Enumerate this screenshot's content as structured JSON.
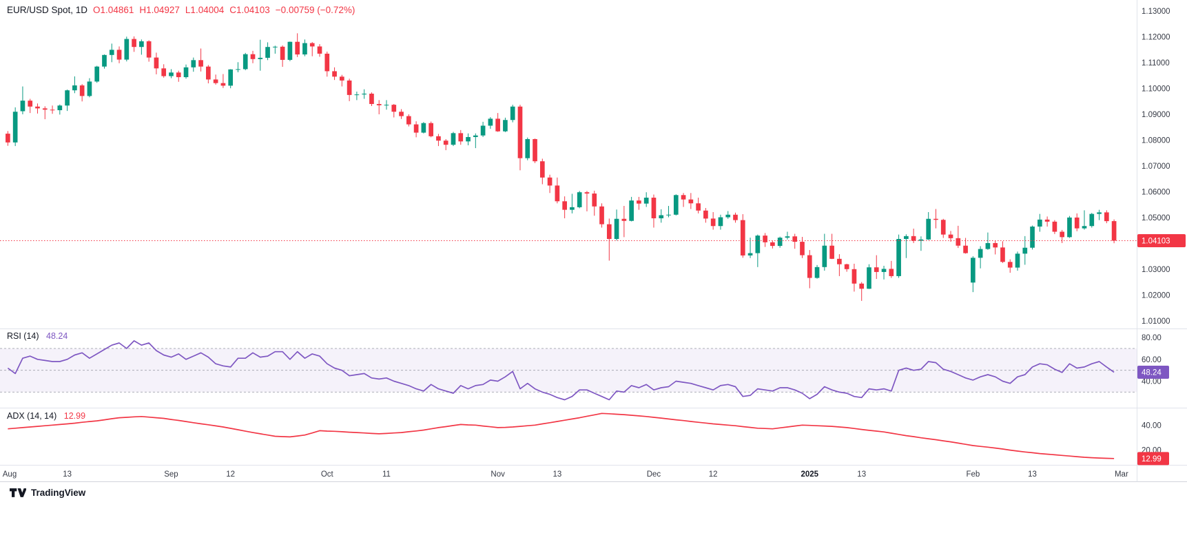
{
  "header": {
    "title": "EUR/USD Spot, 1D",
    "open": "O1.04861",
    "high": "H1.04927",
    "low": "L1.04004",
    "close": "C1.04103",
    "change": "−0.00759 (−0.72%)"
  },
  "legends": {
    "rsi": {
      "title": "RSI (14)",
      "value": "48.24"
    },
    "adx": {
      "title": "ADX (14, 14)",
      "value": "12.99"
    }
  },
  "footer": {
    "brand": "TradingView"
  },
  "colors": {
    "up": "#089981",
    "down": "#f23645",
    "rsi_line": "#7e57c2",
    "adx_line": "#f23645",
    "band": "rgba(126,87,194,0.08)",
    "level_dash": "#8a8e99",
    "axis_text": "#363a45",
    "grid": "#e0e3eb",
    "badge_text": "#ffffff"
  },
  "price_axis": {
    "tick_labels": [
      "1.13000",
      "1.12000",
      "1.11000",
      "1.10000",
      "1.09000",
      "1.08000",
      "1.07000",
      "1.06000",
      "1.05000",
      "1.03000",
      "1.02000",
      "1.01000"
    ],
    "current_label": "1.04103"
  },
  "rsi_axis": {
    "tick_labels": [
      "80.00",
      "60.00",
      "40.00"
    ],
    "levels": [
      70,
      50,
      30
    ],
    "current_label": "48.24",
    "domain": [
      17,
      87
    ]
  },
  "adx_axis": {
    "tick_labels": [
      "40.00",
      "20.00"
    ],
    "current_label": "12.99",
    "domain": [
      9,
      53
    ]
  },
  "chart_data": {
    "type": "candlestick",
    "title": "EUR/USD Spot, 1D",
    "legend_position": "top-left",
    "grid": false,
    "price_domain": [
      1.0078,
      1.1327
    ],
    "current_price": 1.04103,
    "last_candle": {
      "open": 1.04861,
      "high": 1.04927,
      "low": 1.04004,
      "close": 1.04103,
      "change": -0.00759,
      "change_pct": -0.72
    },
    "x_labels": [
      {
        "i": 0,
        "t": "Aug"
      },
      {
        "i": 8,
        "t": "13"
      },
      {
        "i": 22,
        "t": "Sep"
      },
      {
        "i": 30,
        "t": "12"
      },
      {
        "i": 43,
        "t": "Oct"
      },
      {
        "i": 51,
        "t": "11"
      },
      {
        "i": 66,
        "t": "Nov"
      },
      {
        "i": 74,
        "t": "13"
      },
      {
        "i": 87,
        "t": "Dec"
      },
      {
        "i": 95,
        "t": "12"
      },
      {
        "i": 108,
        "t": "2025",
        "bold": true
      },
      {
        "i": 115,
        "t": "13"
      },
      {
        "i": 130,
        "t": "Feb"
      },
      {
        "i": 138,
        "t": "13"
      },
      {
        "i": 150,
        "t": "Mar"
      }
    ],
    "candles": [
      [
        1.0825,
        1.0835,
        1.0778,
        1.0791
      ],
      [
        1.0791,
        1.0927,
        1.0777,
        1.091
      ],
      [
        1.0912,
        1.1008,
        1.09,
        1.0953
      ],
      [
        1.0953,
        1.096,
        1.0905,
        1.093
      ],
      [
        1.093,
        1.0942,
        1.0903,
        1.0923
      ],
      [
        1.0923,
        1.0931,
        1.0881,
        1.0918
      ],
      [
        1.0918,
        1.0934,
        1.0902,
        1.0916
      ],
      [
        1.0916,
        1.0938,
        1.0899,
        1.0934
      ],
      [
        1.0934,
        1.0996,
        1.0913,
        1.0993
      ],
      [
        1.0993,
        1.1047,
        1.0982,
        1.1012
      ],
      [
        1.1012,
        1.1017,
        1.095,
        1.0971
      ],
      [
        1.0971,
        1.104,
        1.0966,
        1.1027
      ],
      [
        1.1027,
        1.1088,
        1.1022,
        1.1085
      ],
      [
        1.1085,
        1.1132,
        1.1077,
        1.113
      ],
      [
        1.113,
        1.1174,
        1.1102,
        1.115
      ],
      [
        1.115,
        1.1163,
        1.1098,
        1.1112
      ],
      [
        1.1112,
        1.1201,
        1.1105,
        1.1192
      ],
      [
        1.1192,
        1.1202,
        1.1142,
        1.1161
      ],
      [
        1.1161,
        1.119,
        1.1131,
        1.1183
      ],
      [
        1.1183,
        1.1187,
        1.1104,
        1.112
      ],
      [
        1.112,
        1.1139,
        1.1055,
        1.1078
      ],
      [
        1.1078,
        1.1094,
        1.1042,
        1.1048
      ],
      [
        1.1048,
        1.1075,
        1.104,
        1.1062
      ],
      [
        1.1062,
        1.1069,
        1.1026,
        1.1044
      ],
      [
        1.1044,
        1.1093,
        1.1038,
        1.1082
      ],
      [
        1.1082,
        1.112,
        1.1065,
        1.111
      ],
      [
        1.111,
        1.1155,
        1.1066,
        1.1085
      ],
      [
        1.1085,
        1.1091,
        1.102,
        1.1035
      ],
      [
        1.1035,
        1.1054,
        1.1015,
        1.1021
      ],
      [
        1.1021,
        1.1056,
        1.1002,
        1.1011
      ],
      [
        1.1011,
        1.1075,
        1.1001,
        1.1074
      ],
      [
        1.1074,
        1.1102,
        1.1063,
        1.1075
      ],
      [
        1.1075,
        1.1138,
        1.1071,
        1.1133
      ],
      [
        1.1133,
        1.1146,
        1.1098,
        1.1114
      ],
      [
        1.1114,
        1.1189,
        1.1069,
        1.1119
      ],
      [
        1.1119,
        1.1179,
        1.111,
        1.1161
      ],
      [
        1.1161,
        1.1166,
        1.1135,
        1.1162
      ],
      [
        1.1162,
        1.1167,
        1.1084,
        1.1111
      ],
      [
        1.1111,
        1.1182,
        1.1106,
        1.1181
      ],
      [
        1.1181,
        1.1214,
        1.1122,
        1.1132
      ],
      [
        1.1132,
        1.119,
        1.1125,
        1.1176
      ],
      [
        1.1176,
        1.118,
        1.1125,
        1.1163
      ],
      [
        1.1163,
        1.1172,
        1.1123,
        1.1135
      ],
      [
        1.1135,
        1.1143,
        1.1046,
        1.1067
      ],
      [
        1.1067,
        1.1082,
        1.1033,
        1.1046
      ],
      [
        1.1046,
        1.1053,
        1.1008,
        1.1031
      ],
      [
        1.1031,
        1.1038,
        1.0951,
        1.0975
      ],
      [
        1.0975,
        1.0988,
        1.0955,
        1.0977
      ],
      [
        1.0977,
        1.0997,
        1.096,
        1.098
      ],
      [
        1.098,
        1.0985,
        1.0932,
        1.094
      ],
      [
        1.094,
        1.0955,
        1.09,
        1.0935
      ],
      [
        1.0935,
        1.0955,
        1.0918,
        1.0937
      ],
      [
        1.0937,
        1.094,
        1.0888,
        1.091
      ],
      [
        1.091,
        1.092,
        1.0882,
        1.0893
      ],
      [
        1.0893,
        1.09,
        1.0853,
        1.0861
      ],
      [
        1.0861,
        1.0873,
        1.0811,
        1.0829
      ],
      [
        1.0829,
        1.087,
        1.0826,
        1.0866
      ],
      [
        1.0866,
        1.0872,
        1.0811,
        1.0815
      ],
      [
        1.0815,
        1.0824,
        1.0777,
        1.0798
      ],
      [
        1.0798,
        1.0804,
        1.0761,
        1.0782
      ],
      [
        1.0782,
        1.0832,
        1.0777,
        1.0827
      ],
      [
        1.0827,
        1.0839,
        1.0782,
        1.0795
      ],
      [
        1.0795,
        1.0826,
        1.078,
        1.0812
      ],
      [
        1.0812,
        1.0826,
        1.0769,
        1.0818
      ],
      [
        1.0818,
        1.0871,
        1.0812,
        1.0856
      ],
      [
        1.0856,
        1.0889,
        1.0844,
        1.0883
      ],
      [
        1.0883,
        1.0905,
        1.0832,
        1.0834
      ],
      [
        1.0834,
        1.0887,
        1.0831,
        1.0878
      ],
      [
        1.0878,
        1.0937,
        1.0869,
        1.093
      ],
      [
        1.093,
        1.0937,
        1.0683,
        1.073
      ],
      [
        1.073,
        1.081,
        1.0722,
        1.0804
      ],
      [
        1.0804,
        1.0806,
        1.0711,
        1.0718
      ],
      [
        1.0718,
        1.0728,
        1.0629,
        1.0655
      ],
      [
        1.0655,
        1.0666,
        1.0595,
        1.0624
      ],
      [
        1.0624,
        1.0655,
        1.0555,
        1.0563
      ],
      [
        1.0563,
        1.0582,
        1.0497,
        1.053
      ],
      [
        1.053,
        1.0592,
        1.0516,
        1.054
      ],
      [
        1.054,
        1.0603,
        1.0536,
        1.0598
      ],
      [
        1.0598,
        1.0603,
        1.0524,
        1.0593
      ],
      [
        1.0593,
        1.0604,
        1.0507,
        1.0543
      ],
      [
        1.0543,
        1.0555,
        1.0461,
        1.0474
      ],
      [
        1.0474,
        1.0496,
        1.0333,
        1.0417
      ],
      [
        1.0417,
        1.0531,
        1.0411,
        1.0495
      ],
      [
        1.0495,
        1.0545,
        1.0424,
        1.0487
      ],
      [
        1.0487,
        1.058,
        1.0485,
        1.0566
      ],
      [
        1.0566,
        1.058,
        1.053,
        1.0554
      ],
      [
        1.0554,
        1.0598,
        1.0541,
        1.0577
      ],
      [
        1.0577,
        1.0589,
        1.0461,
        1.0497
      ],
      [
        1.0497,
        1.0532,
        1.048,
        1.0509
      ],
      [
        1.0509,
        1.0545,
        1.0501,
        1.0511
      ],
      [
        1.0511,
        1.059,
        1.0508,
        1.0587
      ],
      [
        1.0587,
        1.0595,
        1.0541,
        1.057
      ],
      [
        1.057,
        1.0595,
        1.0533,
        1.0555
      ],
      [
        1.0555,
        1.0577,
        1.0516,
        1.0527
      ],
      [
        1.0527,
        1.0537,
        1.048,
        1.0496
      ],
      [
        1.0496,
        1.0521,
        1.0453,
        1.0467
      ],
      [
        1.0467,
        1.0511,
        1.0453,
        1.0501
      ],
      [
        1.0501,
        1.0525,
        1.0495,
        1.0511
      ],
      [
        1.0511,
        1.0519,
        1.048,
        1.049
      ],
      [
        1.049,
        1.0513,
        1.0344,
        1.0353
      ],
      [
        1.0353,
        1.0422,
        1.0343,
        1.0362
      ],
      [
        1.0362,
        1.0434,
        1.0308,
        1.043
      ],
      [
        1.043,
        1.044,
        1.0386,
        1.0404
      ],
      [
        1.0404,
        1.041,
        1.038,
        1.039
      ],
      [
        1.039,
        1.0426,
        1.0383,
        1.0422
      ],
      [
        1.0422,
        1.0445,
        1.0415,
        1.0427
      ],
      [
        1.0427,
        1.0437,
        1.0379,
        1.0406
      ],
      [
        1.0406,
        1.0425,
        1.0343,
        1.0354
      ],
      [
        1.0354,
        1.0374,
        1.0226,
        1.0266
      ],
      [
        1.0266,
        1.0316,
        1.0263,
        1.0308
      ],
      [
        1.0308,
        1.0437,
        1.0294,
        1.0391
      ],
      [
        1.0391,
        1.0437,
        1.0339,
        1.034
      ],
      [
        1.034,
        1.0358,
        1.0273,
        1.0319
      ],
      [
        1.0319,
        1.0321,
        1.029,
        1.03
      ],
      [
        1.03,
        1.0321,
        1.0213,
        1.0244
      ],
      [
        1.0244,
        1.025,
        1.0177,
        1.0224
      ],
      [
        1.0224,
        1.0319,
        1.0223,
        1.0307
      ],
      [
        1.0307,
        1.0354,
        1.0262,
        1.0289
      ],
      [
        1.0289,
        1.0313,
        1.026,
        1.0301
      ],
      [
        1.0301,
        1.0332,
        1.0266,
        1.0273
      ],
      [
        1.0273,
        1.0434,
        1.0266,
        1.0417
      ],
      [
        1.0417,
        1.0435,
        1.0343,
        1.0428
      ],
      [
        1.0428,
        1.0457,
        1.0401,
        1.041
      ],
      [
        1.041,
        1.0427,
        1.0371,
        1.0415
      ],
      [
        1.0415,
        1.0521,
        1.0413,
        1.0495
      ],
      [
        1.0495,
        1.0533,
        1.0458,
        1.0491
      ],
      [
        1.0491,
        1.0495,
        1.0421,
        1.0434
      ],
      [
        1.0434,
        1.0448,
        1.0406,
        1.042
      ],
      [
        1.042,
        1.0468,
        1.0382,
        1.0391
      ],
      [
        1.0391,
        1.0421,
        1.036,
        1.0362
      ],
      [
        1.0248,
        1.035,
        1.0211,
        1.0344
      ],
      [
        1.0344,
        1.0389,
        1.0303,
        1.0378
      ],
      [
        1.0378,
        1.0442,
        1.0375,
        1.0401
      ],
      [
        1.0401,
        1.041,
        1.0357,
        1.0384
      ],
      [
        1.0384,
        1.0408,
        1.0324,
        1.0328
      ],
      [
        1.0328,
        1.0338,
        1.0286,
        1.0306
      ],
      [
        1.0306,
        1.0368,
        1.0294,
        1.036
      ],
      [
        1.036,
        1.0428,
        1.0317,
        1.0383
      ],
      [
        1.0383,
        1.0469,
        1.0376,
        1.0465
      ],
      [
        1.0465,
        1.0514,
        1.0445,
        1.0492
      ],
      [
        1.0492,
        1.0504,
        1.0465,
        1.0484
      ],
      [
        1.0484,
        1.049,
        1.0436,
        1.0445
      ],
      [
        1.0445,
        1.0452,
        1.0401,
        1.0424
      ],
      [
        1.0424,
        1.0506,
        1.0421,
        1.05
      ],
      [
        1.05,
        1.0516,
        1.0447,
        1.0458
      ],
      [
        1.0458,
        1.0528,
        1.0453,
        1.0467
      ],
      [
        1.0467,
        1.0518,
        1.0461,
        1.0514
      ],
      [
        1.0514,
        1.053,
        1.049,
        1.052
      ],
      [
        1.052,
        1.0528,
        1.0478,
        1.0486
      ],
      [
        1.04861,
        1.04927,
        1.04004,
        1.04103
      ]
    ],
    "indicators": {
      "rsi": {
        "name": "RSI",
        "period": 14,
        "current": 48.24,
        "values": [
          52,
          47,
          61,
          63,
          60,
          59,
          58,
          58,
          60,
          64,
          66,
          61,
          65,
          69,
          73,
          75,
          70,
          77,
          73,
          75,
          68,
          64,
          62,
          65,
          60,
          63,
          66,
          62,
          56,
          54,
          53,
          61,
          61,
          66,
          62,
          63,
          67,
          67,
          60,
          67,
          61,
          65,
          63,
          56,
          52,
          50,
          45,
          46,
          47,
          43,
          42,
          43,
          40,
          38,
          36,
          33,
          31,
          37,
          33,
          31,
          29,
          36,
          33,
          36,
          37,
          41,
          40,
          44,
          49,
          33,
          38,
          33,
          30,
          28,
          25,
          23,
          26,
          32,
          32,
          29,
          26,
          23,
          31,
          30,
          36,
          34,
          37,
          32,
          34,
          35,
          40,
          39,
          38,
          36,
          34,
          32,
          36,
          37,
          35,
          26,
          27,
          33,
          32,
          31,
          34,
          34,
          32,
          29,
          24,
          28,
          35,
          32,
          30,
          29,
          26,
          25,
          33,
          32,
          33,
          31,
          50,
          52,
          50,
          51,
          58,
          57,
          51,
          49,
          46,
          43,
          41,
          44,
          46,
          44,
          40,
          38,
          44,
          46,
          53,
          56,
          55,
          51,
          48,
          56,
          52,
          53,
          56,
          58,
          53,
          48.24
        ]
      },
      "adx": {
        "name": "ADX",
        "period": 14,
        "smoothing": 14,
        "current": 12.99,
        "values": [
          37,
          37.5,
          38,
          38.5,
          39,
          39.5,
          40,
          40.5,
          41,
          41.6,
          42.3,
          42.9,
          43.5,
          44.3,
          45.2,
          46,
          46.3,
          46.7,
          47,
          46.5,
          46,
          45.5,
          44.6,
          43.8,
          42.9,
          42,
          41.1,
          40.3,
          39.4,
          38.5,
          37.4,
          36.3,
          35.1,
          34,
          33,
          32,
          31,
          30.7,
          30.5,
          31.2,
          32,
          33.7,
          35.5,
          35.2,
          35,
          34.7,
          34.3,
          34,
          33.7,
          33.3,
          33,
          33.3,
          33.7,
          34,
          34.7,
          35.3,
          36,
          37,
          38,
          38.8,
          39.7,
          40.5,
          40.2,
          40,
          39.3,
          38.7,
          38,
          38.2,
          38.5,
          39,
          39.5,
          40,
          41,
          42,
          43,
          44,
          45,
          46,
          47.2,
          48.3,
          49.5,
          49.2,
          48.8,
          48.5,
          48,
          47.5,
          47,
          46.3,
          45.7,
          45,
          44.3,
          43.7,
          43,
          42.3,
          41.7,
          41,
          40.5,
          40,
          39.5,
          38.8,
          38.2,
          37.5,
          37.3,
          37,
          37.8,
          38.5,
          39.3,
          40,
          39.8,
          39.5,
          39.3,
          39,
          38.5,
          38,
          37.3,
          36.5,
          35.8,
          35.2,
          34.5,
          33.5,
          32.5,
          31.5,
          30.7,
          29.8,
          29,
          28.2,
          27.3,
          26.5,
          25.5,
          24.5,
          23.5,
          22.8,
          22.2,
          21.5,
          20.7,
          19.8,
          19,
          18.3,
          17.7,
          17,
          16.5,
          16,
          15.5,
          15,
          14.5,
          14,
          13.7,
          13.4,
          13.2,
          12.99
        ]
      }
    }
  }
}
